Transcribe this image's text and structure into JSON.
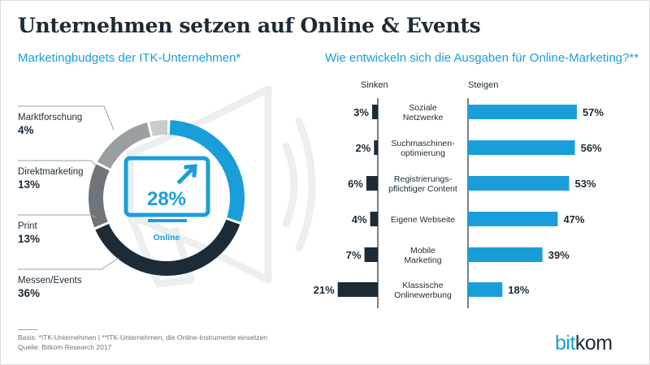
{
  "title": "Unternehmen setzen auf Online & Events",
  "subtitle_left": "Marketingbudgets der ITK-Unternehmen*",
  "subtitle_right": "Wie entwickeln sich die Ausgaben für Online-Marketing?**",
  "colors": {
    "accent": "#1a9ed9",
    "dark": "#1d2b36",
    "gray1": "#c9cccd",
    "gray2": "#9aa0a2",
    "gray3": "#6e7477"
  },
  "chart_data": [
    {
      "type": "pie",
      "title": "Marketingbudgets der ITK-Unternehmen*",
      "center_value": "28%",
      "center_label": "Online",
      "slices": [
        {
          "name": "Online",
          "value": 28,
          "label": "28%"
        },
        {
          "name": "Messen/Events",
          "value": 36,
          "label": "36%"
        },
        {
          "name": "Print",
          "value": 13,
          "label": "13%"
        },
        {
          "name": "Direktmarketing",
          "value": 13,
          "label": "13%"
        },
        {
          "name": "Marktforschung",
          "value": 4,
          "label": "4%"
        }
      ]
    },
    {
      "type": "bar",
      "title": "Wie entwickeln sich die Ausgaben für Online-Marketing?**",
      "header_left": "Sinken",
      "header_right": "Steigen",
      "categories": [
        [
          "Soziale",
          "Netzwerke"
        ],
        [
          "Suchmaschinen-",
          "optimierung"
        ],
        [
          "Registrierungs-",
          "pflichtiger Content"
        ],
        [
          "Eigene Webseite"
        ],
        [
          "Mobile",
          "Marketing"
        ],
        [
          "Klassische",
          "Onlinewerbung"
        ]
      ],
      "series": [
        {
          "name": "Sinken",
          "values": [
            3,
            2,
            6,
            4,
            7,
            21
          ],
          "labels": [
            "3%",
            "2%",
            "6%",
            "4%",
            "7%",
            "21%"
          ]
        },
        {
          "name": "Steigen",
          "values": [
            57,
            56,
            53,
            47,
            39,
            18
          ],
          "labels": [
            "57%",
            "56%",
            "53%",
            "47%",
            "39%",
            "18%"
          ]
        }
      ]
    }
  ],
  "footer": {
    "line1": "Basis: *ITK-Unternehmen | **ITK-Unternehmen, die Online-Instrumente einsetzen",
    "line2": "Quelle: Bitkom Research 2017"
  },
  "logo": {
    "part1": "bit",
    "part2": "kom"
  }
}
